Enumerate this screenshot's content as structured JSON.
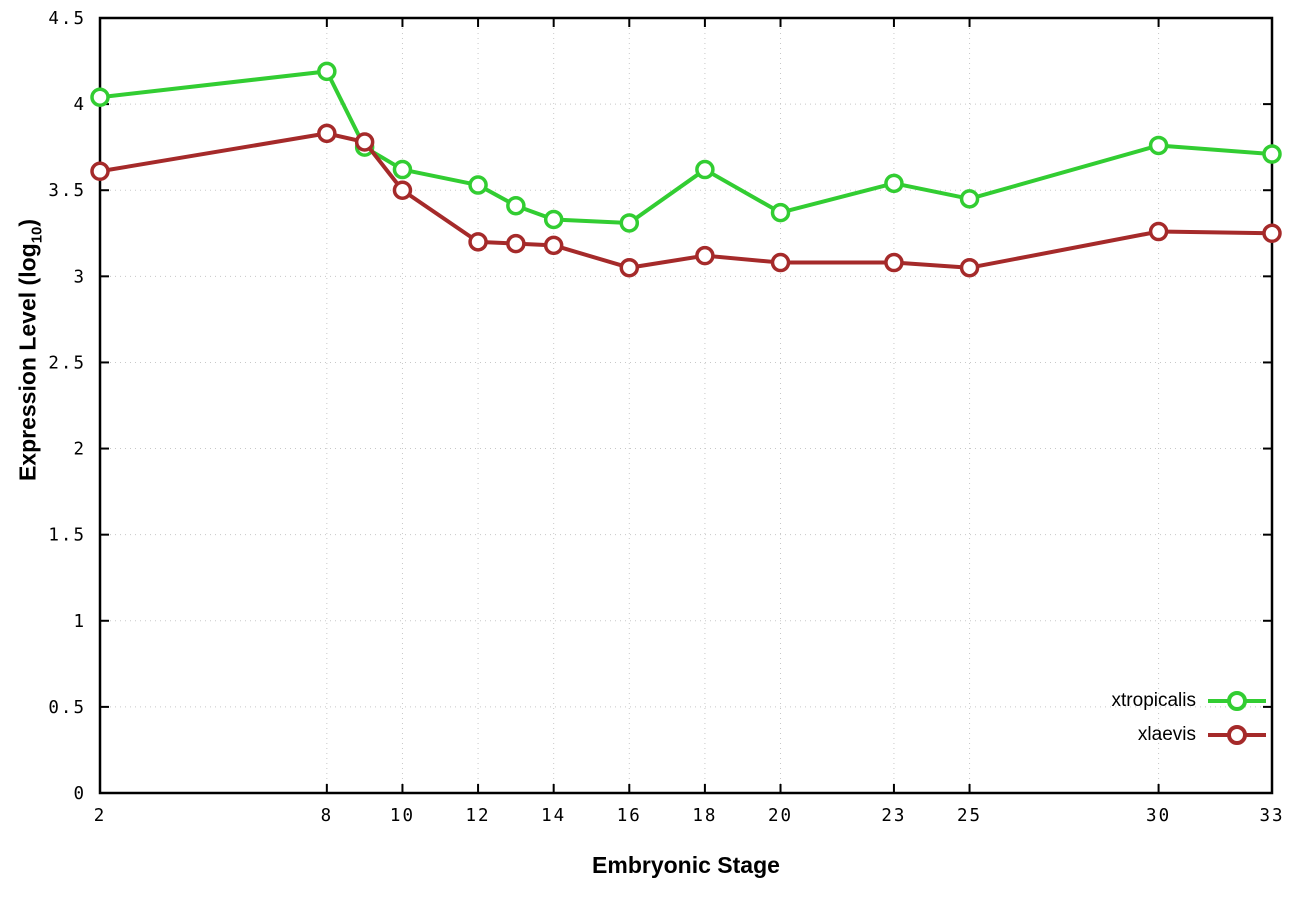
{
  "chart_data": {
    "type": "line",
    "title": "",
    "xlabel": "Embryonic Stage",
    "ylabel_parts": {
      "prefix": "Expression Level (log",
      "sub": "10",
      "suffix": ")"
    },
    "xlim": [
      2,
      33
    ],
    "ylim": [
      0,
      4.5
    ],
    "ytick_step": 0.5,
    "xticks": [
      2,
      8,
      10,
      12,
      14,
      16,
      18,
      20,
      23,
      25,
      30,
      33
    ],
    "x": [
      2,
      8,
      9,
      10,
      12,
      13,
      14,
      16,
      18,
      20,
      23,
      25,
      30,
      33
    ],
    "series": [
      {
        "name": "xtropicalis",
        "color": "#32CD32",
        "values": [
          4.04,
          4.19,
          3.75,
          3.62,
          3.53,
          3.41,
          3.33,
          3.31,
          3.62,
          3.37,
          3.54,
          3.45,
          3.76,
          3.71
        ]
      },
      {
        "name": "xlaevis",
        "color": "#A52A2A",
        "values": [
          3.61,
          3.83,
          3.78,
          3.5,
          3.2,
          3.19,
          3.18,
          3.05,
          3.12,
          3.08,
          3.08,
          3.05,
          3.26,
          3.25
        ]
      }
    ],
    "grid": true,
    "legend_position": "inside-bottom-right",
    "colors": {
      "grid": "#c8c8c8",
      "border": "#000000",
      "background": "#ffffff"
    }
  }
}
